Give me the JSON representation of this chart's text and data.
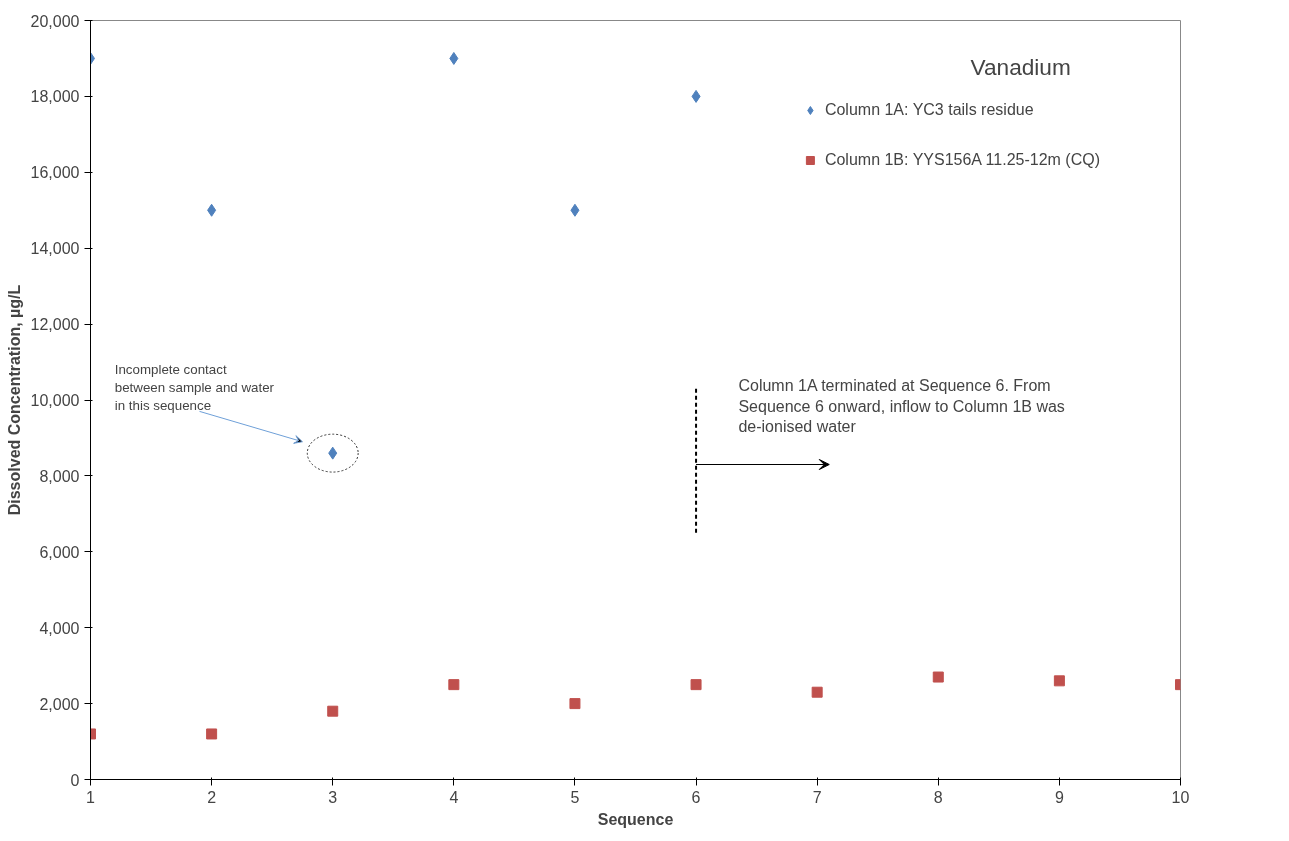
{
  "chart_data": {
    "type": "scatter",
    "title": "Vanadium",
    "xlabel": "Sequence",
    "ylabel": "Dissolved Concentration, µg/L",
    "x": [
      1,
      2,
      3,
      4,
      5,
      6,
      7,
      8,
      9,
      10
    ],
    "series": [
      {
        "name": "Column 1A: YC3 tails residue",
        "color": "#4f81bd",
        "marker": "diamond",
        "values": [
          19000,
          15000,
          8600,
          19000,
          15000,
          18000,
          null,
          null,
          null,
          null
        ]
      },
      {
        "name": "Column 1B: YYS156A 11.25-12m (CQ)",
        "color": "#c0504d",
        "marker": "square",
        "values": [
          1200,
          1200,
          1800,
          2500,
          2000,
          2500,
          2300,
          2700,
          2600,
          2500
        ]
      }
    ],
    "xlim": [
      1,
      10
    ],
    "xticks": [
      1,
      2,
      3,
      4,
      5,
      6,
      7,
      8,
      9,
      10
    ],
    "ylim": [
      0,
      20000
    ],
    "yticks": [
      {
        "value": 0,
        "label": "0"
      },
      {
        "value": 2000,
        "label": "2,000"
      },
      {
        "value": 4000,
        "label": "4,000"
      },
      {
        "value": 6000,
        "label": "6,000"
      },
      {
        "value": 8000,
        "label": "8,000"
      },
      {
        "value": 10000,
        "label": "10,000"
      },
      {
        "value": 12000,
        "label": "12,000"
      },
      {
        "value": 14000,
        "label": "14,000"
      },
      {
        "value": 16000,
        "label": "16,000"
      },
      {
        "value": 18000,
        "label": "18,000"
      },
      {
        "value": 20000,
        "label": "20,000"
      }
    ],
    "annotations": [
      "Incomplete contact between sample and water in this sequence",
      "Column 1A terminated at Sequence 6. From Sequence 6 onward, inflow to Column 1B was de-ionised water"
    ],
    "ref_lines": [
      {
        "axis": "x",
        "value": 6,
        "color": "#000000",
        "line_style": "dashed"
      }
    ],
    "grid": false,
    "legend": "top right"
  }
}
